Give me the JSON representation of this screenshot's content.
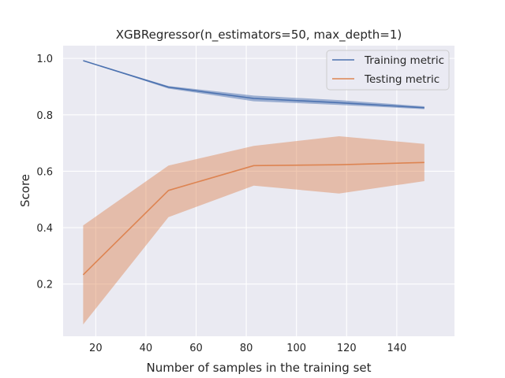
{
  "chart_data": {
    "type": "line",
    "title": "XGBRegressor(n_estimators=50, max_depth=1)",
    "xlabel": "Number of samples in the training set",
    "ylabel": "Score",
    "xlim": [
      7,
      163
    ],
    "ylim": [
      0.015,
      1.045
    ],
    "xticks": [
      20,
      40,
      60,
      80,
      100,
      120,
      140
    ],
    "yticks": [
      0.2,
      0.4,
      0.6,
      0.8,
      1.0
    ],
    "grid": true,
    "background": "#eaeaf2",
    "legend_position": "top-right",
    "series": [
      {
        "name": "Training metric",
        "color": "#4c72b0",
        "x": [
          15,
          49,
          83,
          117,
          151
        ],
        "y": [
          0.992,
          0.898,
          0.858,
          0.843,
          0.825
        ],
        "lower": [
          0.992,
          0.893,
          0.848,
          0.835,
          0.82
        ],
        "upper": [
          0.992,
          0.902,
          0.868,
          0.852,
          0.83
        ]
      },
      {
        "name": "Testing metric",
        "color": "#dd8452",
        "x": [
          15,
          49,
          83,
          117,
          151
        ],
        "y": [
          0.233,
          0.532,
          0.62,
          0.623,
          0.631
        ],
        "lower": [
          0.057,
          0.437,
          0.549,
          0.521,
          0.565
        ],
        "upper": [
          0.408,
          0.62,
          0.69,
          0.724,
          0.697
        ]
      }
    ]
  }
}
